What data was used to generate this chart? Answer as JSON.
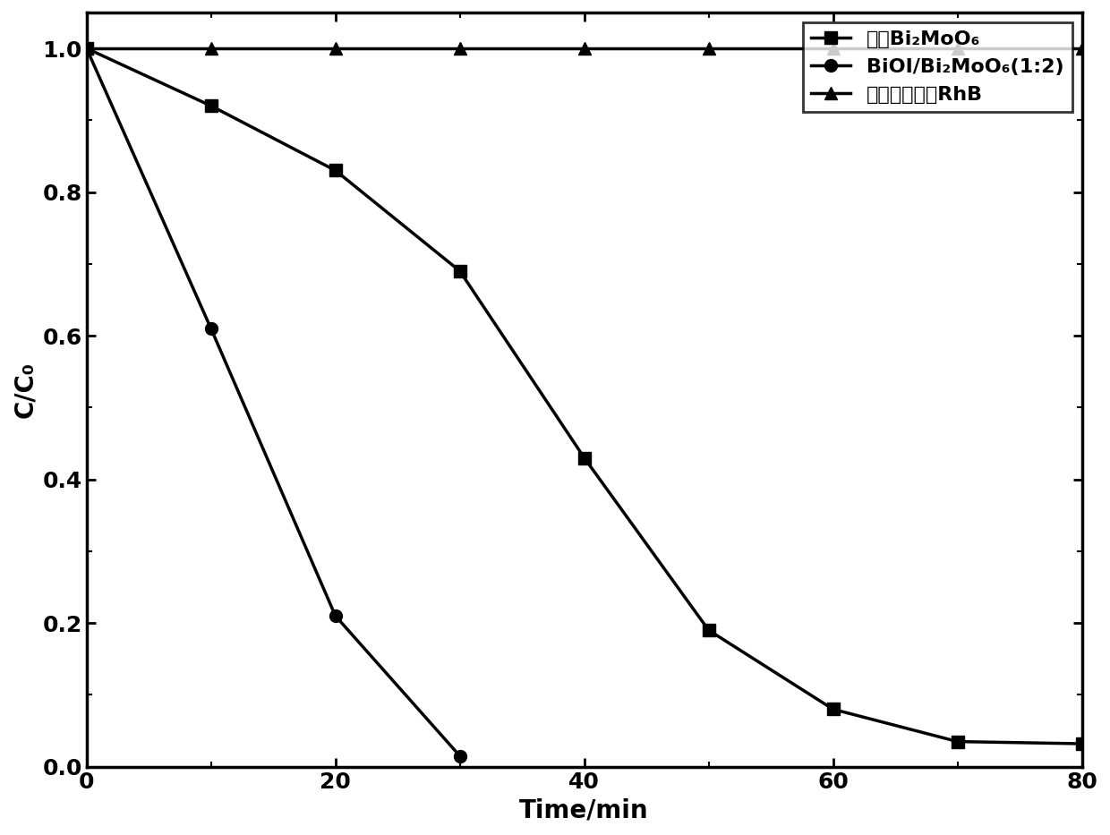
{
  "series": [
    {
      "label_cn": "纯的Bi₂MoO₆",
      "x": [
        0,
        10,
        20,
        30,
        40,
        50,
        60,
        70,
        80
      ],
      "y": [
        1.0,
        0.92,
        0.83,
        0.69,
        0.43,
        0.19,
        0.08,
        0.035,
        0.032
      ],
      "marker": "s",
      "color": "#000000",
      "linewidth": 2.5,
      "markersize": 10
    },
    {
      "label_cn": "BiOI/Bi₂MoO₆(1:2)",
      "x": [
        0,
        10,
        20,
        30
      ],
      "y": [
        1.0,
        0.61,
        0.21,
        0.015
      ],
      "marker": "o",
      "color": "#000000",
      "linewidth": 2.5,
      "markersize": 10
    },
    {
      "label_cn": "未加催化剑的RhB",
      "x": [
        0,
        10,
        20,
        30,
        40,
        50,
        60,
        70,
        80
      ],
      "y": [
        1.0,
        1.0,
        1.0,
        1.0,
        1.0,
        1.0,
        1.0,
        1.0,
        1.0
      ],
      "marker": "^",
      "color": "#000000",
      "linewidth": 2.5,
      "markersize": 10
    }
  ],
  "xlabel": "Time/min",
  "ylabel": "C/C₀",
  "xlim": [
    0,
    80
  ],
  "ylim": [
    0,
    1.05
  ],
  "xticks": [
    0,
    20,
    40,
    60,
    80
  ],
  "yticks": [
    0.0,
    0.2,
    0.4,
    0.6,
    0.8,
    1.0
  ],
  "background_color": "#ffffff",
  "xlabel_fontsize": 20,
  "ylabel_fontsize": 20,
  "tick_fontsize": 18,
  "legend_fontsize": 16
}
